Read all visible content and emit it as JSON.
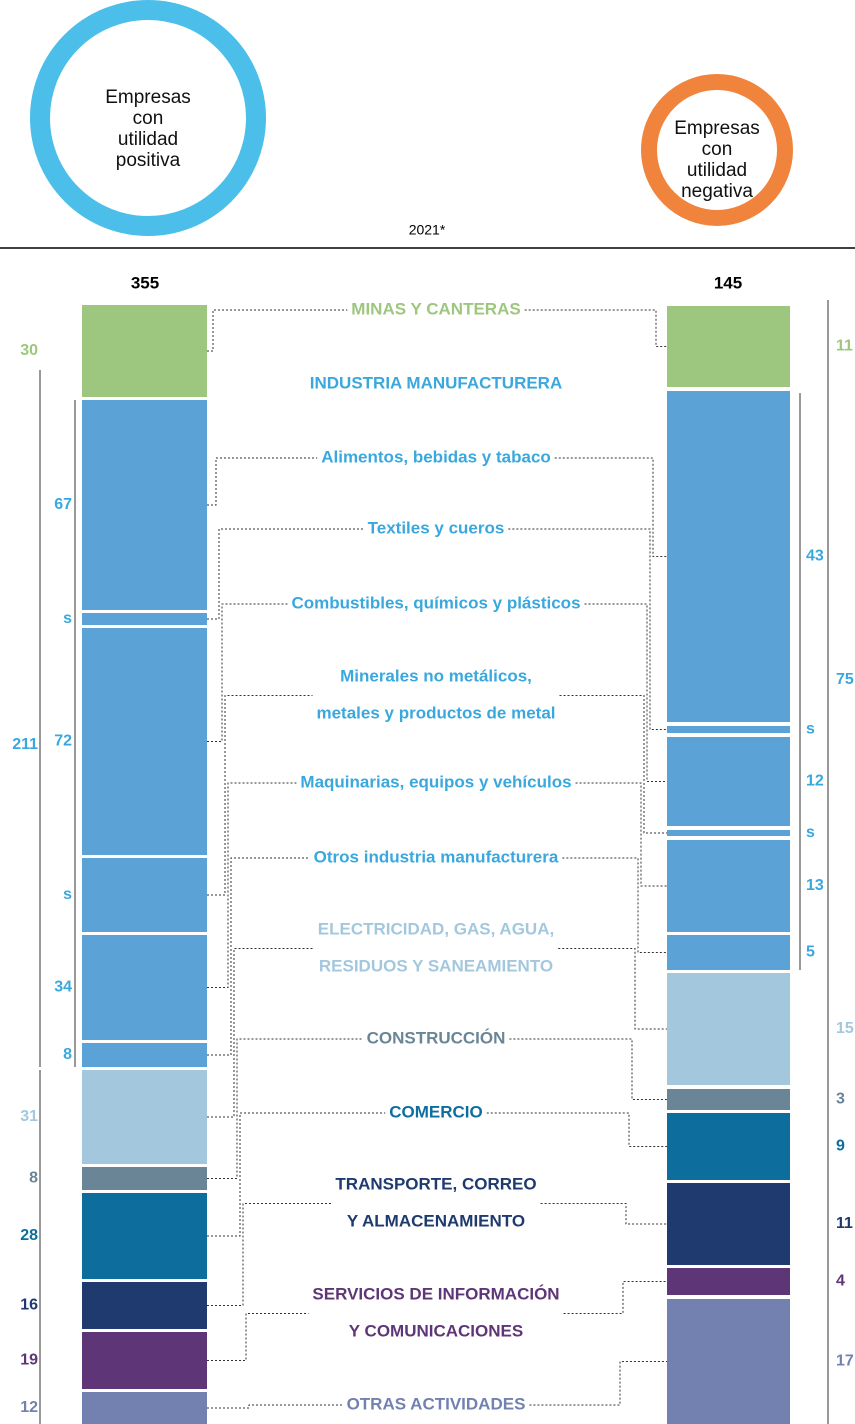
{
  "header": {
    "left_circle": [
      "Empresas",
      "con",
      "utilidad",
      "positiva"
    ],
    "right_circle": [
      "Empresas",
      "con",
      "utilidad",
      "negativa"
    ],
    "year": "2021*"
  },
  "totals": {
    "left": "355",
    "right": "145"
  },
  "industry": {
    "label": "INDUSTRIA MANUFACTURERA",
    "left": "211",
    "right": "75"
  },
  "rows": [
    {
      "label": [
        "MINAS Y CANTERAS"
      ],
      "left": "30",
      "right": "11"
    },
    {
      "label": [
        "Alimentos, bebidas y tabaco"
      ],
      "left": "67",
      "right": "43"
    },
    {
      "label": [
        "Textiles y cueros"
      ],
      "left": "s",
      "right": "s"
    },
    {
      "label": [
        "Combustibles, químicos y plásticos"
      ],
      "left": "72",
      "right": "12"
    },
    {
      "label": [
        "Minerales no metálicos,",
        "metales y productos de metal"
      ],
      "left": "s",
      "right": "s"
    },
    {
      "label": [
        "Maquinarias, equipos y vehículos"
      ],
      "left": "34",
      "right": "13"
    },
    {
      "label": [
        "Otros industria manufacturera"
      ],
      "left": "8",
      "right": "5"
    },
    {
      "label": [
        "ELECTRICIDAD, GAS, AGUA,",
        "RESIDUOS Y SANEAMIENTO"
      ],
      "left": "31",
      "right": "15"
    },
    {
      "label": [
        "CONSTRUCCIÓN"
      ],
      "left": "8",
      "right": "3"
    },
    {
      "label": [
        "COMERCIO"
      ],
      "left": "28",
      "right": "9"
    },
    {
      "label": [
        "TRANSPORTE, CORREO",
        "Y ALMACENAMIENTO"
      ],
      "left": "16",
      "right": "11"
    },
    {
      "label": [
        "SERVICIOS DE INFORMACIÓN",
        "Y COMUNICACIONES"
      ],
      "left": "19",
      "right": "4"
    },
    {
      "label": [
        "OTRAS ACTIVIDADES"
      ],
      "left": "12",
      "right": "17"
    }
  ]
}
